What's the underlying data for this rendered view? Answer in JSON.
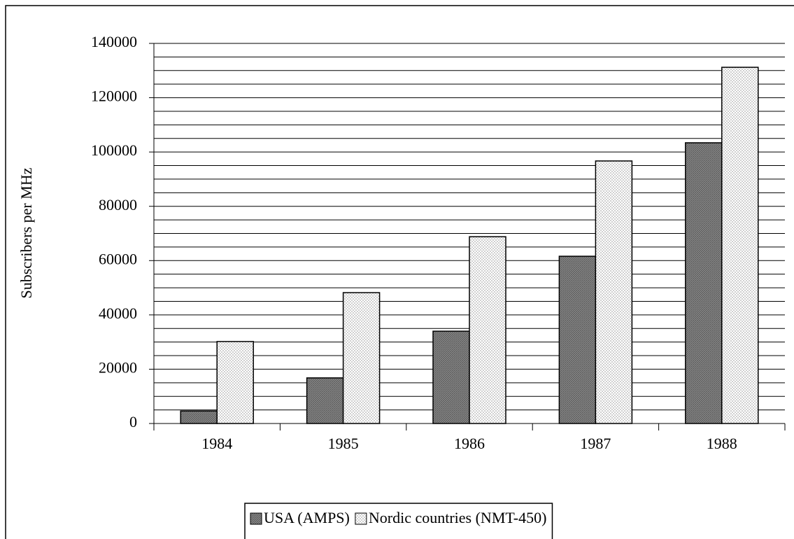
{
  "chart_data": {
    "type": "bar",
    "y_label": "Subscribers per MHz",
    "categories": [
      "1984",
      "1985",
      "1986",
      "1987",
      "1988"
    ],
    "series": [
      {
        "name": "USA (AMPS)",
        "color": "#8a8a8a",
        "values": [
          4600,
          16800,
          34000,
          61600,
          103400
        ]
      },
      {
        "name": "Nordic countries (NMT-450)",
        "color": "#d0d0d0",
        "values": [
          30200,
          48200,
          68800,
          96700,
          131200
        ]
      }
    ],
    "ylim": [
      0,
      140000
    ],
    "yticks": [
      0,
      20000,
      40000,
      60000,
      80000,
      100000,
      120000,
      140000
    ],
    "ygrid": [
      5000,
      10000,
      15000,
      20000,
      25000,
      30000,
      35000,
      40000,
      45000,
      50000,
      55000,
      60000,
      65000,
      70000,
      75000,
      80000,
      85000,
      90000,
      95000,
      100000,
      105000,
      110000,
      115000,
      120000,
      125000,
      130000,
      135000,
      140000
    ],
    "grid": true,
    "legend": "bottom"
  }
}
